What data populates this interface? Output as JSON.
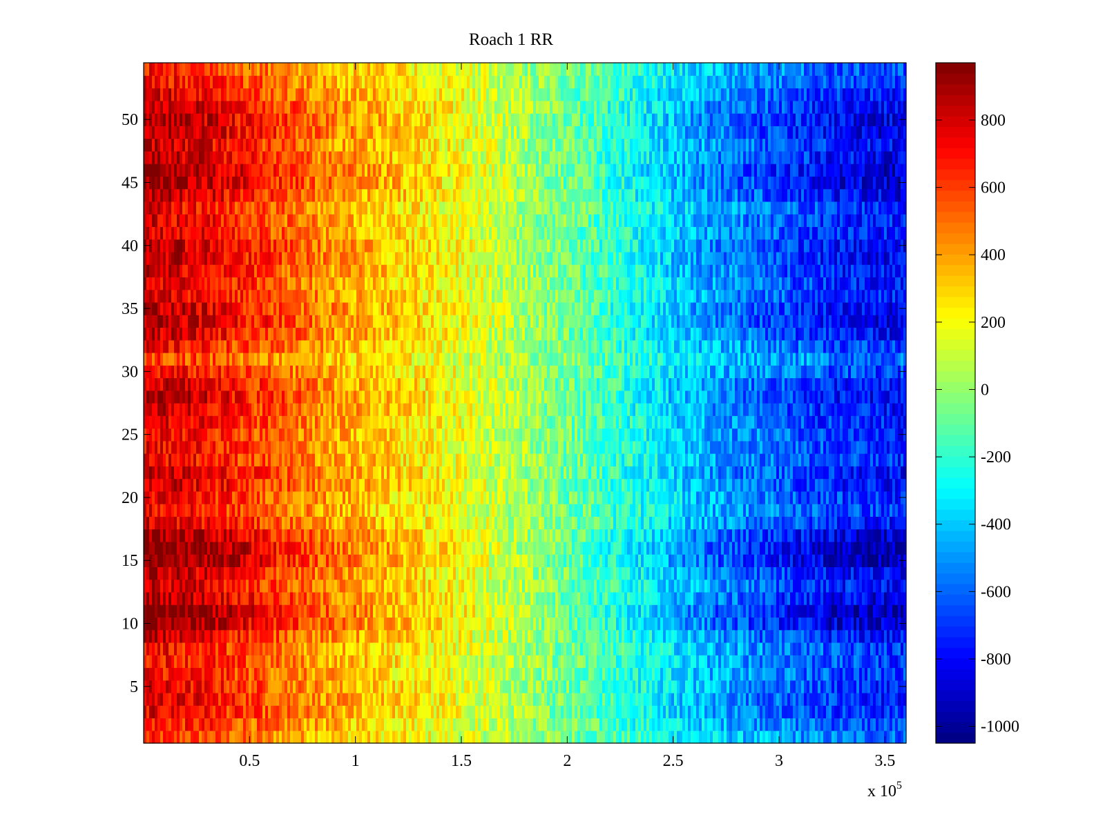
{
  "chart_data": {
    "type": "heatmap",
    "title": "Roach 1 RR",
    "xlabel": "",
    "ylabel": "",
    "x_multiplier_label": {
      "base": "x 10",
      "exponent": "5"
    },
    "xlim": [
      0,
      360000
    ],
    "ylim": [
      0.5,
      54.5
    ],
    "x_ticks": [
      50000,
      100000,
      150000,
      200000,
      250000,
      300000,
      350000
    ],
    "x_tick_labels": [
      "0.5",
      "1",
      "1.5",
      "2",
      "2.5",
      "3",
      "3.5"
    ],
    "y_ticks": [
      5,
      10,
      15,
      20,
      25,
      30,
      35,
      40,
      45,
      50
    ],
    "y_tick_labels": [
      "5",
      "10",
      "15",
      "20",
      "25",
      "30",
      "35",
      "40",
      "45",
      "50"
    ],
    "rows": 54,
    "colormap": "jet",
    "colorbar": {
      "clim": [
        -1050,
        970
      ],
      "ticks": [
        800,
        600,
        400,
        200,
        0,
        -200,
        -400,
        -600,
        -800,
        -1000
      ],
      "tick_labels": [
        "800",
        "600",
        "400",
        "200",
        "0",
        "-200",
        "-400",
        "-600",
        "-800",
        "-1000"
      ]
    },
    "trend": {
      "x": [
        0,
        30000,
        90000,
        150000,
        210000,
        270000,
        330000,
        360000
      ],
      "value": [
        800,
        720,
        400,
        180,
        -120,
        -480,
        -720,
        -760
      ]
    },
    "row_extremity": [
      0.5,
      0.7,
      0.9,
      1.0,
      0.9,
      0.8,
      0.8,
      0.8,
      1.1,
      1.5,
      1.6,
      1.3,
      1.1,
      1.2,
      1.6,
      1.6,
      1.4,
      1.0,
      0.8,
      0.9,
      1.1,
      1.1,
      0.9,
      0.9,
      0.9,
      1.0,
      1.1,
      1.2,
      1.1,
      0.8,
      0.5,
      0.8,
      1.1,
      1.3,
      1.2,
      1.0,
      1.0,
      1.1,
      1.2,
      1.2,
      1.0,
      1.0,
      0.9,
      1.2,
      1.4,
      1.4,
      1.2,
      1.1,
      1.3,
      1.3,
      1.2,
      1.0,
      0.8,
      0.7
    ]
  }
}
